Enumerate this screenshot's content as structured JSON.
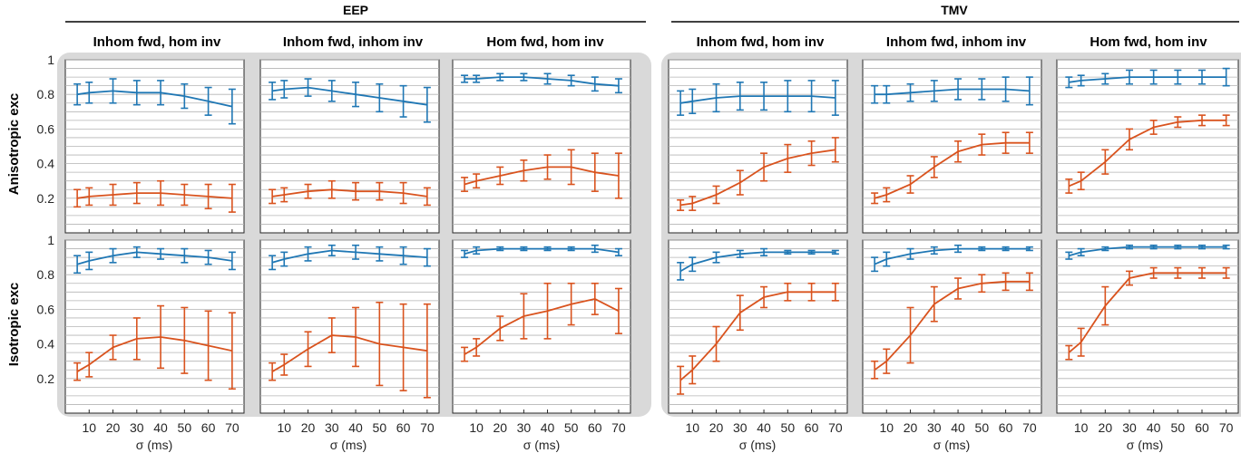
{
  "groups": [
    {
      "name": "EEP"
    },
    {
      "name": "TMV"
    }
  ],
  "column_titles": [
    "Inhom fwd, hom inv",
    "Inhom fwd, inhom inv",
    "Hom fwd, hom inv"
  ],
  "row_labels": [
    "Anisotropic exc",
    "Isotropic exc"
  ],
  "xlabel": "σ (ms)",
  "colors": {
    "blue": "#1f77b4",
    "orange": "#d9531e",
    "panel_bg": "#d9d9d9",
    "grid": "#b4b4b4"
  },
  "chart_data": {
    "type": "line",
    "x": [
      5,
      10,
      20,
      30,
      40,
      50,
      60,
      70
    ],
    "x_ticks": [
      10,
      20,
      30,
      40,
      50,
      60,
      70
    ],
    "y_ticks": [
      0.2,
      0.4,
      0.6,
      0.8,
      1
    ],
    "y_tick_labels": [
      "0.2",
      "0.4",
      "0.6",
      "0.8",
      "1"
    ],
    "ylim": [
      0,
      1
    ],
    "xlim": [
      0,
      75
    ],
    "grid": "horizontal",
    "panels": [
      {
        "group": "EEP",
        "column": "Inhom fwd, hom inv",
        "row": "Anisotropic exc",
        "blue": {
          "mean": [
            0.8,
            0.81,
            0.82,
            0.81,
            0.81,
            0.79,
            0.76,
            0.73
          ],
          "err": [
            0.06,
            0.06,
            0.07,
            0.07,
            0.07,
            0.07,
            0.08,
            0.1
          ]
        },
        "orange": {
          "mean": [
            0.2,
            0.21,
            0.22,
            0.23,
            0.23,
            0.22,
            0.21,
            0.2
          ],
          "err": [
            0.05,
            0.05,
            0.06,
            0.06,
            0.07,
            0.06,
            0.07,
            0.08
          ]
        }
      },
      {
        "group": "EEP",
        "column": "Inhom fwd, inhom inv",
        "row": "Anisotropic exc",
        "blue": {
          "mean": [
            0.82,
            0.83,
            0.84,
            0.82,
            0.8,
            0.78,
            0.76,
            0.74
          ],
          "err": [
            0.05,
            0.05,
            0.05,
            0.06,
            0.07,
            0.08,
            0.09,
            0.1
          ]
        },
        "orange": {
          "mean": [
            0.21,
            0.22,
            0.24,
            0.25,
            0.24,
            0.24,
            0.23,
            0.21
          ],
          "err": [
            0.04,
            0.04,
            0.04,
            0.05,
            0.05,
            0.05,
            0.06,
            0.05
          ]
        }
      },
      {
        "group": "EEP",
        "column": "Hom fwd, hom inv",
        "row": "Anisotropic exc",
        "blue": {
          "mean": [
            0.89,
            0.89,
            0.9,
            0.9,
            0.89,
            0.88,
            0.86,
            0.85
          ],
          "err": [
            0.02,
            0.02,
            0.02,
            0.02,
            0.03,
            0.03,
            0.04,
            0.04
          ]
        },
        "orange": {
          "mean": [
            0.28,
            0.3,
            0.33,
            0.36,
            0.38,
            0.38,
            0.35,
            0.33
          ],
          "err": [
            0.04,
            0.04,
            0.05,
            0.06,
            0.07,
            0.1,
            0.11,
            0.13
          ]
        }
      },
      {
        "group": "TMV",
        "column": "Inhom fwd, hom inv",
        "row": "Anisotropic exc",
        "blue": {
          "mean": [
            0.75,
            0.76,
            0.78,
            0.79,
            0.79,
            0.79,
            0.79,
            0.78
          ],
          "err": [
            0.07,
            0.07,
            0.08,
            0.08,
            0.08,
            0.09,
            0.09,
            0.1
          ]
        },
        "orange": {
          "mean": [
            0.16,
            0.17,
            0.22,
            0.29,
            0.38,
            0.43,
            0.46,
            0.48
          ],
          "err": [
            0.03,
            0.04,
            0.05,
            0.07,
            0.08,
            0.08,
            0.07,
            0.07
          ]
        }
      },
      {
        "group": "TMV",
        "column": "Inhom fwd, inhom inv",
        "row": "Anisotropic exc",
        "blue": {
          "mean": [
            0.8,
            0.8,
            0.81,
            0.82,
            0.83,
            0.83,
            0.83,
            0.82
          ],
          "err": [
            0.05,
            0.05,
            0.05,
            0.06,
            0.06,
            0.06,
            0.07,
            0.08
          ]
        },
        "orange": {
          "mean": [
            0.2,
            0.22,
            0.28,
            0.38,
            0.47,
            0.51,
            0.52,
            0.52
          ],
          "err": [
            0.03,
            0.04,
            0.05,
            0.06,
            0.06,
            0.06,
            0.06,
            0.06
          ]
        }
      },
      {
        "group": "TMV",
        "column": "Hom fwd, hom inv",
        "row": "Anisotropic exc",
        "blue": {
          "mean": [
            0.87,
            0.88,
            0.89,
            0.9,
            0.9,
            0.9,
            0.9,
            0.9
          ],
          "err": [
            0.03,
            0.03,
            0.03,
            0.04,
            0.04,
            0.04,
            0.04,
            0.05
          ]
        },
        "orange": {
          "mean": [
            0.27,
            0.3,
            0.41,
            0.54,
            0.61,
            0.64,
            0.65,
            0.65
          ],
          "err": [
            0.04,
            0.05,
            0.07,
            0.06,
            0.04,
            0.03,
            0.03,
            0.03
          ]
        }
      },
      {
        "group": "EEP",
        "column": "Inhom fwd, hom inv",
        "row": "Isotropic exc",
        "blue": {
          "mean": [
            0.86,
            0.88,
            0.91,
            0.93,
            0.92,
            0.91,
            0.9,
            0.88
          ],
          "err": [
            0.05,
            0.05,
            0.04,
            0.03,
            0.03,
            0.04,
            0.04,
            0.05
          ]
        },
        "orange": {
          "mean": [
            0.24,
            0.28,
            0.38,
            0.43,
            0.44,
            0.42,
            0.39,
            0.36
          ],
          "err": [
            0.05,
            0.07,
            0.07,
            0.12,
            0.18,
            0.19,
            0.2,
            0.22
          ]
        }
      },
      {
        "group": "EEP",
        "column": "Inhom fwd, inhom inv",
        "row": "Isotropic exc",
        "blue": {
          "mean": [
            0.87,
            0.89,
            0.92,
            0.94,
            0.93,
            0.92,
            0.91,
            0.9
          ],
          "err": [
            0.04,
            0.04,
            0.04,
            0.03,
            0.04,
            0.04,
            0.05,
            0.05
          ]
        },
        "orange": {
          "mean": [
            0.24,
            0.28,
            0.37,
            0.45,
            0.44,
            0.4,
            0.38,
            0.36
          ],
          "err": [
            0.05,
            0.06,
            0.1,
            0.1,
            0.17,
            0.24,
            0.25,
            0.27
          ]
        }
      },
      {
        "group": "EEP",
        "column": "Hom fwd, hom inv",
        "row": "Isotropic exc",
        "blue": {
          "mean": [
            0.92,
            0.94,
            0.95,
            0.95,
            0.95,
            0.95,
            0.95,
            0.93
          ],
          "err": [
            0.02,
            0.02,
            0.01,
            0.01,
            0.01,
            0.01,
            0.02,
            0.02
          ]
        },
        "orange": {
          "mean": [
            0.34,
            0.38,
            0.49,
            0.56,
            0.59,
            0.63,
            0.66,
            0.59
          ],
          "err": [
            0.04,
            0.05,
            0.07,
            0.13,
            0.16,
            0.12,
            0.09,
            0.13
          ]
        }
      },
      {
        "group": "TMV",
        "column": "Inhom fwd, hom inv",
        "row": "Isotropic exc",
        "blue": {
          "mean": [
            0.82,
            0.86,
            0.9,
            0.92,
            0.93,
            0.93,
            0.93,
            0.93
          ],
          "err": [
            0.05,
            0.04,
            0.03,
            0.02,
            0.02,
            0.01,
            0.01,
            0.01
          ]
        },
        "orange": {
          "mean": [
            0.19,
            0.25,
            0.4,
            0.58,
            0.67,
            0.7,
            0.7,
            0.7
          ],
          "err": [
            0.08,
            0.08,
            0.1,
            0.1,
            0.06,
            0.05,
            0.05,
            0.05
          ]
        }
      },
      {
        "group": "TMV",
        "column": "Inhom fwd, inhom inv",
        "row": "Isotropic exc",
        "blue": {
          "mean": [
            0.86,
            0.89,
            0.92,
            0.94,
            0.95,
            0.95,
            0.95,
            0.95
          ],
          "err": [
            0.04,
            0.04,
            0.03,
            0.02,
            0.02,
            0.01,
            0.01,
            0.01
          ]
        },
        "orange": {
          "mean": [
            0.25,
            0.3,
            0.45,
            0.63,
            0.72,
            0.75,
            0.76,
            0.76
          ],
          "err": [
            0.05,
            0.07,
            0.16,
            0.1,
            0.06,
            0.05,
            0.05,
            0.05
          ]
        }
      },
      {
        "group": "TMV",
        "column": "Hom fwd, hom inv",
        "row": "Isotropic exc",
        "blue": {
          "mean": [
            0.91,
            0.93,
            0.95,
            0.96,
            0.96,
            0.96,
            0.96,
            0.96
          ],
          "err": [
            0.02,
            0.02,
            0.01,
            0.01,
            0.01,
            0.01,
            0.01,
            0.01
          ]
        },
        "orange": {
          "mean": [
            0.35,
            0.41,
            0.62,
            0.78,
            0.81,
            0.81,
            0.81,
            0.81
          ],
          "err": [
            0.04,
            0.08,
            0.11,
            0.04,
            0.03,
            0.03,
            0.03,
            0.03
          ]
        }
      }
    ]
  }
}
